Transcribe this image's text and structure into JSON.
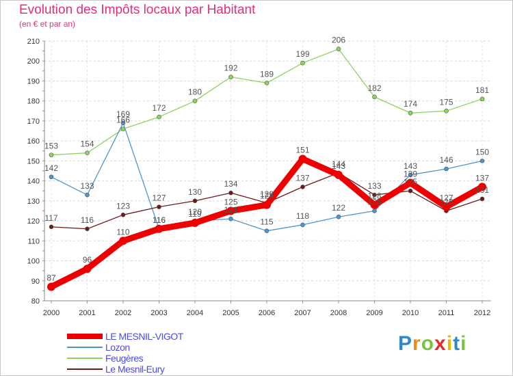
{
  "chart_data": {
    "type": "line",
    "title": "Evolution des Impôts locaux par Habitant",
    "subtitle": "(en € et par an)",
    "xlabel": "",
    "ylabel": "",
    "x": [
      "2000",
      "2001",
      "2002",
      "2003",
      "2004",
      "2005",
      "2006",
      "2007",
      "2008",
      "2009",
      "2010",
      "2011",
      "2012"
    ],
    "ylim": [
      80,
      210
    ],
    "yticks": [
      80,
      90,
      100,
      110,
      120,
      130,
      140,
      150,
      160,
      170,
      180,
      190,
      200,
      210
    ],
    "grid": "horizontal dashed",
    "legend_position": "bottom-left",
    "series": [
      {
        "name": "LE MESNIL-VIGOT",
        "color": "#ee0000",
        "values": [
          87,
          96,
          110,
          116,
          119,
          125,
          128,
          151,
          143,
          128,
          139,
          127,
          137
        ]
      },
      {
        "name": "Lozon",
        "color": "#4f95cc",
        "values": [
          142,
          133,
          169,
          116,
          120,
          121,
          115,
          118,
          122,
          125,
          143,
          146,
          150
        ]
      },
      {
        "name": "Feugères",
        "color": "#8cd45e",
        "values": [
          153,
          154,
          166,
          172,
          180,
          192,
          189,
          199,
          206,
          182,
          174,
          175,
          181
        ]
      },
      {
        "name": "Le Mesnil-Eury",
        "color": "#6b1a1a",
        "values": [
          117,
          116,
          123,
          127,
          130,
          134,
          129,
          137,
          144,
          133,
          135,
          125,
          131
        ]
      }
    ]
  },
  "logo": {
    "letters": [
      "P",
      "r",
      "o",
      "x",
      "i",
      "t",
      "i"
    ],
    "colors": [
      "#2f89c9",
      "#f08a1d",
      "#7cc242",
      "#e62a2a",
      "#f4b400",
      "#2f89c9",
      "#7cc242"
    ]
  }
}
